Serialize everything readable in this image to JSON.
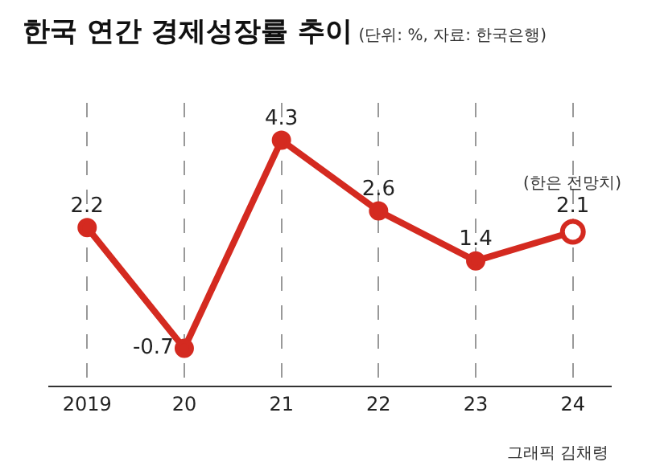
{
  "chart_data": {
    "type": "line",
    "title": "한국 연간 경제성장률 추이",
    "subtitle": "(단위: %, 자료: 한국은행)",
    "categories": [
      "2019",
      "20",
      "21",
      "22",
      "23",
      "24"
    ],
    "series": [
      {
        "color": "#d42a20",
        "values": [
          2.2,
          -0.7,
          4.3,
          2.6,
          1.4,
          2.1
        ]
      }
    ],
    "data_labels": true,
    "marker": "circle",
    "grid": "x",
    "annotations": [
      {
        "text": "(한은 전망치)",
        "x": "24",
        "y": 2.1
      },
      "그래픽 김채령"
    ]
  }
}
